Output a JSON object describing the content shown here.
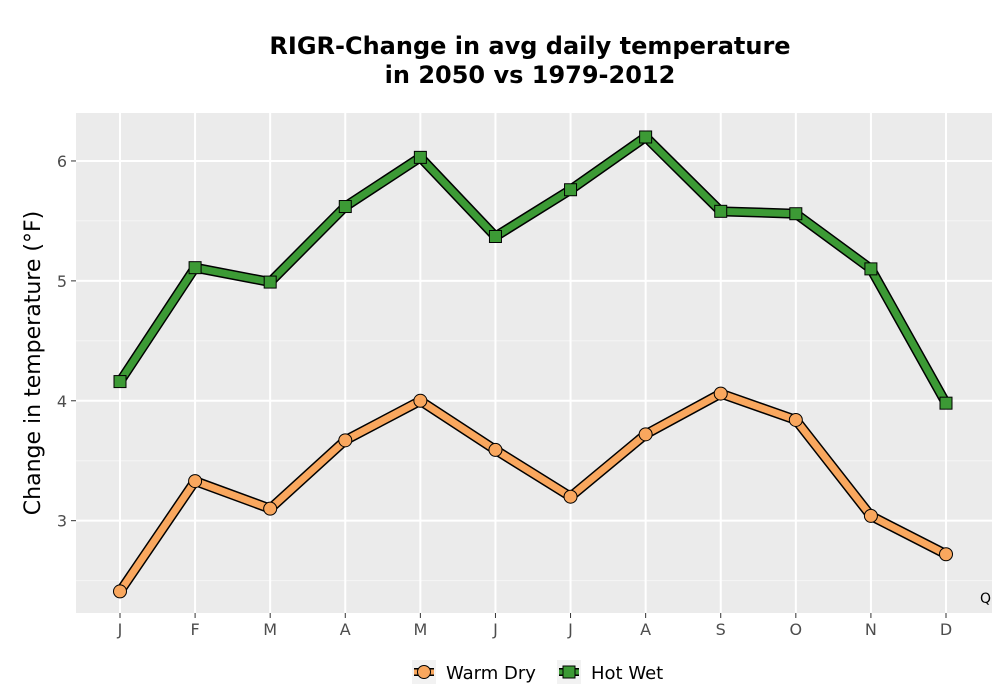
{
  "chart_data": {
    "type": "line",
    "title": "RIGR-Change in avg daily temperature\nin 2050 vs 1979-2012",
    "xlabel": "",
    "ylabel": "Change in temperature (°F)",
    "categories": [
      "J",
      "F",
      "M",
      "A",
      "M",
      "J",
      "J",
      "A",
      "S",
      "O",
      "N",
      "D"
    ],
    "ylim": [
      2.23,
      6.4
    ],
    "yticks": [
      3,
      4,
      5,
      6
    ],
    "grid": true,
    "legend_position": "bottom",
    "corner_note": "Q",
    "series": [
      {
        "name": "Warm Dry",
        "color": "#f9a75e",
        "marker": "circle",
        "values": [
          2.41,
          3.33,
          3.1,
          3.67,
          4.0,
          3.59,
          3.2,
          3.72,
          4.06,
          3.84,
          3.04,
          2.72
        ]
      },
      {
        "name": "Hot Wet",
        "color": "#3c9a35",
        "marker": "square",
        "values": [
          4.16,
          5.11,
          4.99,
          5.62,
          6.03,
          5.37,
          5.76,
          6.2,
          5.58,
          5.56,
          5.1,
          3.98
        ]
      }
    ]
  }
}
